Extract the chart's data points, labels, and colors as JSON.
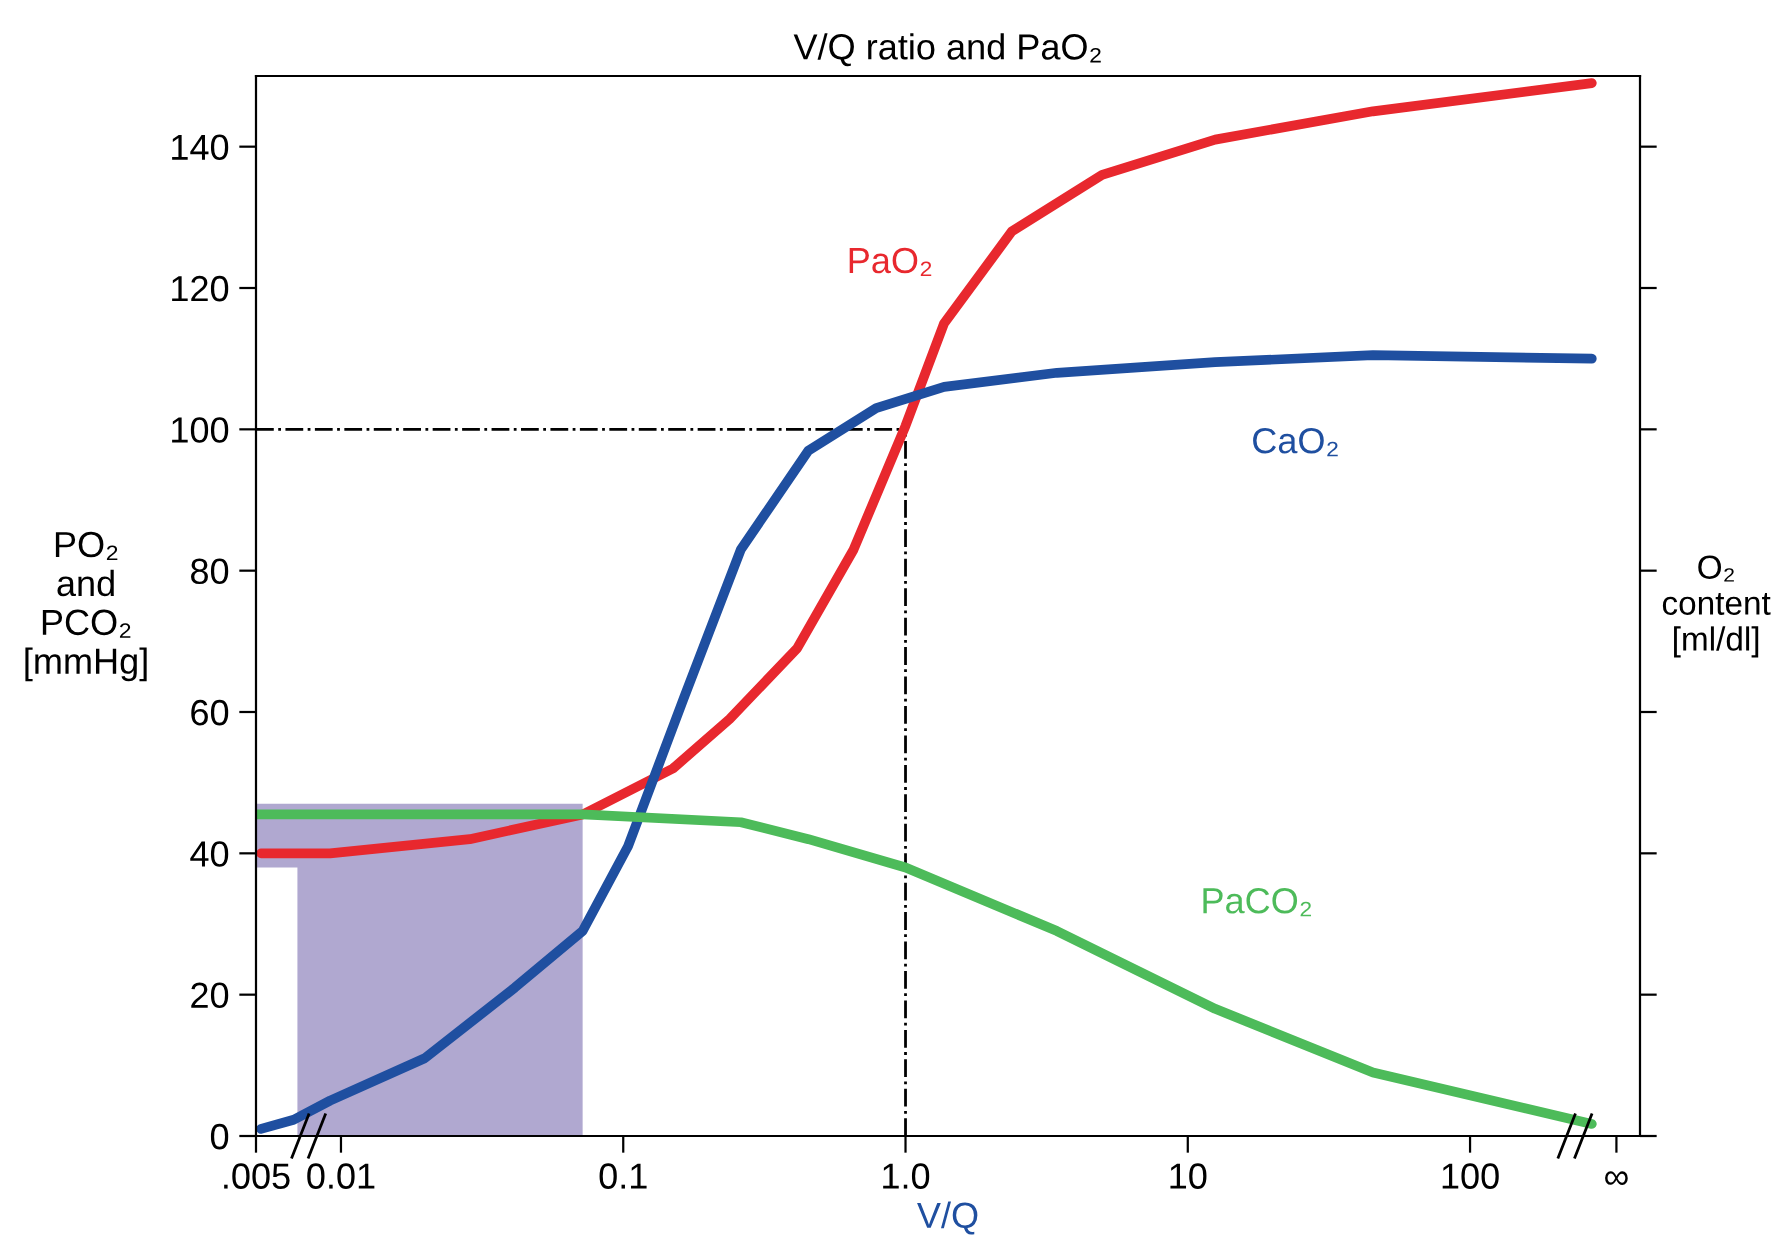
{
  "chart_data": {
    "type": "line",
    "title": "V/Q ratio and PaO₂",
    "xlabel": "V/Q",
    "ylabel": "PO₂\nand\nPCO₂\n[mmHg]",
    "y2label": "O₂\ncontent\n[ml/dl]",
    "log": "x",
    "xlim": [
      0.005,
      400
    ],
    "xticks": [
      {
        "value": 0.005,
        "label": ".005"
      },
      {
        "value": 0.01,
        "label": "0.01"
      },
      {
        "value": 0.1,
        "label": "0.1"
      },
      {
        "value": 1,
        "label": "1.0"
      },
      10,
      100,
      {
        "value": 330,
        "label": "∞"
      }
    ],
    "ylim": [
      0,
      150
    ],
    "yticks": [
      0,
      20,
      40,
      60,
      80,
      100,
      120,
      140
    ],
    "grid": false,
    "legend": false,
    "marker": "none",
    "line_style": "solid",
    "ref_lines": [
      {
        "axis": "y",
        "value": 100,
        "color": "#000000",
        "line_style": "dashdot"
      },
      {
        "axis": "x",
        "value": 1,
        "color": "#000000",
        "line_style": "dashdot"
      }
    ],
    "series": [
      {
        "color": "#b0a8d0",
        "x": [
          0.005,
          0.00701,
          0.00701,
          0.0718
        ],
        "values": [
          null,
          null,
          null,
          null
        ],
        "lower": [
          38,
          38,
          0,
          0
        ],
        "upper": [
          47,
          47,
          47,
          47
        ]
      },
      {
        "name": "PaO₂",
        "color": "#e8282e",
        "x": [
          0.00521,
          0.00915,
          0.0286,
          0.0718,
          0.15,
          0.238,
          0.413,
          0.655,
          1.0,
          1.37,
          2.38,
          4.97,
          12.5,
          45.3,
          270
        ],
        "values": [
          40,
          40,
          42,
          45.5,
          52,
          59,
          69,
          83,
          100.5,
          115,
          128,
          136,
          141,
          145,
          149
        ]
      },
      {
        "name": "CaO₂",
        "color": "#1f4fa0",
        "x": [
          0.00521,
          0.0068,
          0.00915,
          0.0198,
          0.0413,
          0.0718,
          0.104,
          0.164,
          0.261,
          0.453,
          0.787,
          1.37,
          3.44,
          12.5,
          45.3,
          270
        ],
        "values": [
          1,
          2.3,
          5,
          11,
          21,
          29,
          41,
          62,
          83,
          97,
          103,
          106,
          108,
          109.5,
          110.5,
          110
        ]
      },
      {
        "name": "PaCO₂",
        "color": "#4dbb5a",
        "x": [
          0.00506,
          0.0718,
          0.261,
          0.453,
          1.0,
          3.44,
          12.5,
          45.3,
          270
        ],
        "values": [
          45.5,
          45.5,
          44.4,
          42,
          38,
          29,
          18,
          9,
          1.7
        ]
      }
    ]
  }
}
